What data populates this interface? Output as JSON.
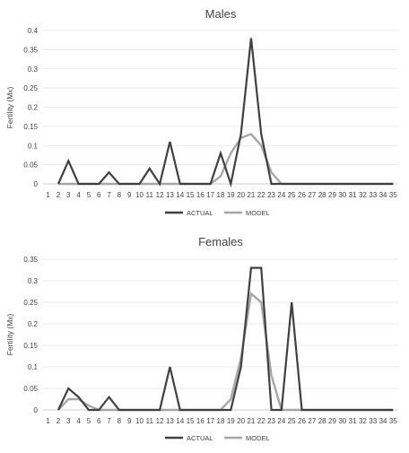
{
  "chart_data": [
    {
      "type": "line",
      "title": "Males",
      "ylabel": "Fertility (Mx)",
      "xlabel": "",
      "categories": [
        "1",
        "2",
        "3",
        "4",
        "5",
        "6",
        "7",
        "8",
        "9",
        "10",
        "11",
        "12",
        "13",
        "14",
        "15",
        "16",
        "17",
        "18",
        "19",
        "20",
        "21",
        "22",
        "23",
        "24",
        "25",
        "26",
        "27",
        "28",
        "29",
        "30",
        "31",
        "32",
        "33",
        "34",
        "35"
      ],
      "yticks": [
        "0",
        "0.05",
        "0.1",
        "0.15",
        "0.2",
        "0.25",
        "0.3",
        "0.35",
        "0.4"
      ],
      "ylim": [
        0,
        0.4
      ],
      "grid": "horizontal",
      "legend": "bottom",
      "series": [
        {
          "name": "ACTUAL",
          "color": "#404040",
          "values": [
            null,
            0,
            0.06,
            0,
            0,
            0,
            0.03,
            0,
            0,
            0,
            0.04,
            0,
            0.11,
            0,
            0,
            0,
            0,
            0.08,
            0,
            0.13,
            0.38,
            0.13,
            0,
            0,
            0,
            0,
            0,
            0,
            0,
            0,
            0,
            0,
            0,
            0,
            0
          ]
        },
        {
          "name": "MODEL",
          "color": "#a6a6a6",
          "values": [
            null,
            0,
            0,
            0,
            0,
            0,
            0,
            0,
            0,
            0,
            0,
            0,
            0,
            0,
            0,
            0,
            0,
            0.02,
            0.08,
            0.12,
            0.13,
            0.1,
            0.03,
            0,
            0,
            0,
            0,
            0,
            0,
            0,
            0,
            0,
            0,
            0,
            0
          ]
        }
      ]
    },
    {
      "type": "line",
      "title": "Females",
      "ylabel": "Fertility (Mx)",
      "xlabel": "",
      "categories": [
        "1",
        "2",
        "3",
        "4",
        "5",
        "6",
        "7",
        "8",
        "9",
        "10",
        "11",
        "12",
        "13",
        "14",
        "15",
        "16",
        "17",
        "18",
        "19",
        "20",
        "21",
        "22",
        "23",
        "24",
        "25",
        "26",
        "27",
        "28",
        "29",
        "30",
        "31",
        "32",
        "33",
        "34",
        "35"
      ],
      "yticks": [
        "0",
        "0.05",
        "0.1",
        "0.15",
        "0.2",
        "0.25",
        "0.3",
        "0.35"
      ],
      "ylim": [
        0,
        0.35
      ],
      "grid": "horizontal",
      "legend": "bottom",
      "series": [
        {
          "name": "ACTUAL",
          "color": "#404040",
          "values": [
            null,
            0,
            0.05,
            0.03,
            0,
            0,
            0.03,
            0,
            0,
            0,
            0,
            0,
            0.1,
            0,
            0,
            0,
            0,
            0,
            0,
            0.1,
            0.33,
            0.33,
            0,
            0,
            0.25,
            0,
            0,
            0,
            0,
            0,
            0,
            0,
            0,
            0,
            0
          ]
        },
        {
          "name": "MODEL",
          "color": "#a6a6a6",
          "values": [
            null,
            0,
            0.025,
            0.025,
            0.01,
            0,
            0,
            0,
            0,
            0,
            0,
            0,
            0,
            0,
            0,
            0,
            0,
            0,
            0.025,
            0.12,
            0.27,
            0.25,
            0.08,
            0,
            0,
            0,
            0,
            0,
            0,
            0,
            0,
            0,
            0,
            0,
            0
          ]
        }
      ]
    }
  ]
}
